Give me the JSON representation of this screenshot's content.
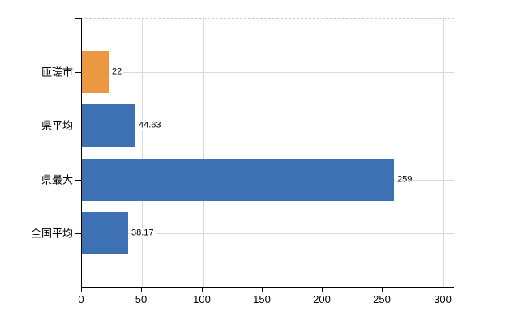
{
  "chart_data": {
    "type": "bar",
    "orientation": "horizontal",
    "title": "",
    "xlabel": "",
    "ylabel": "",
    "categories": [
      "匝瑳市",
      "県平均",
      "県最大",
      "全国平均"
    ],
    "values": [
      22,
      44.63,
      259,
      38.17
    ],
    "value_labels": [
      "22",
      "44.63",
      "259",
      "38.17"
    ],
    "bar_colors": [
      "#EC9840",
      "#3E70B4",
      "#3E70B4",
      "#3E70B4"
    ],
    "xticks": [
      0,
      50,
      100,
      150,
      200,
      250,
      300
    ],
    "xtick_labels": [
      "0",
      "50",
      "100",
      "150",
      "200",
      "250",
      "300"
    ],
    "xlim": [
      0,
      309
    ],
    "grid": true,
    "legend": false
  },
  "colors": {
    "axis": "#000000",
    "gridline": "#d9d9d9",
    "plot_top_border": "#cccccc",
    "background": "#ffffff",
    "text": "#000000",
    "orange_bar": "#EC9840",
    "blue_bar": "#3E70B4"
  }
}
